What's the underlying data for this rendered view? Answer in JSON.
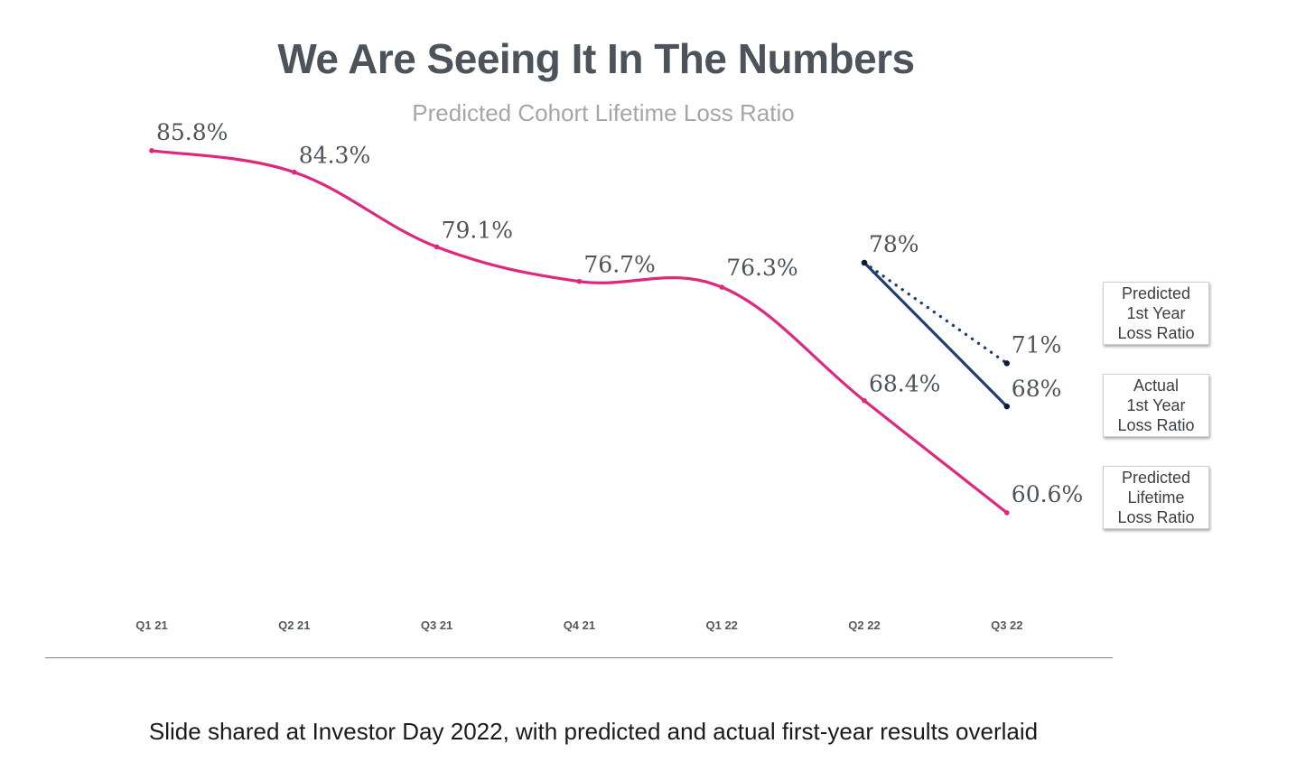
{
  "title": "We Are Seeing It In The Numbers",
  "subtitle": "Predicted Cohort Lifetime Loss Ratio",
  "caption": "Slide shared at Investor Day 2022, with predicted and actual first-year results overlaid",
  "colors": {
    "lifetime": "#e0277e",
    "actual": "#1f3f73",
    "predicted_first_year": "#1f3f73",
    "title": "#4d535b",
    "subtitle": "#a6a6a6"
  },
  "chart_data": {
    "type": "line",
    "categories": [
      "Q1 21",
      "Q2 21",
      "Q3 21",
      "Q4 21",
      "Q1 22",
      "Q2 22",
      "Q3 22"
    ],
    "ylim": [
      55,
      90
    ],
    "grid": false,
    "series": [
      {
        "name": "Predicted Lifetime Loss Ratio",
        "style": "solid",
        "color": "#e0277e",
        "values": [
          85.8,
          84.3,
          79.1,
          76.7,
          76.3,
          68.4,
          60.6
        ],
        "labels": [
          "85.8%",
          "84.3%",
          "79.1%",
          "76.7%",
          "76.3%",
          "68.4%",
          "60.6%"
        ]
      },
      {
        "name": "Actual 1st Year Loss Ratio",
        "style": "solid",
        "color": "#1f3f73",
        "values": [
          null,
          null,
          null,
          null,
          null,
          78,
          68
        ],
        "labels": [
          null,
          null,
          null,
          null,
          null,
          "78%",
          "68%"
        ]
      },
      {
        "name": "Predicted 1st Year Loss Ratio",
        "style": "dotted",
        "color": "#1f3f73",
        "values": [
          null,
          null,
          null,
          null,
          null,
          78,
          71
        ],
        "labels": [
          null,
          null,
          null,
          null,
          null,
          null,
          "71%"
        ]
      }
    ],
    "callouts": [
      {
        "text": "Predicted\n1st Year\nLoss Ratio",
        "series": "Predicted 1st Year Loss Ratio"
      },
      {
        "text": "Actual\n1st Year\nLoss Ratio",
        "series": "Actual 1st Year Loss Ratio"
      },
      {
        "text": "Predicted\nLifetime\nLoss Ratio",
        "series": "Predicted Lifetime Loss Ratio"
      }
    ]
  }
}
